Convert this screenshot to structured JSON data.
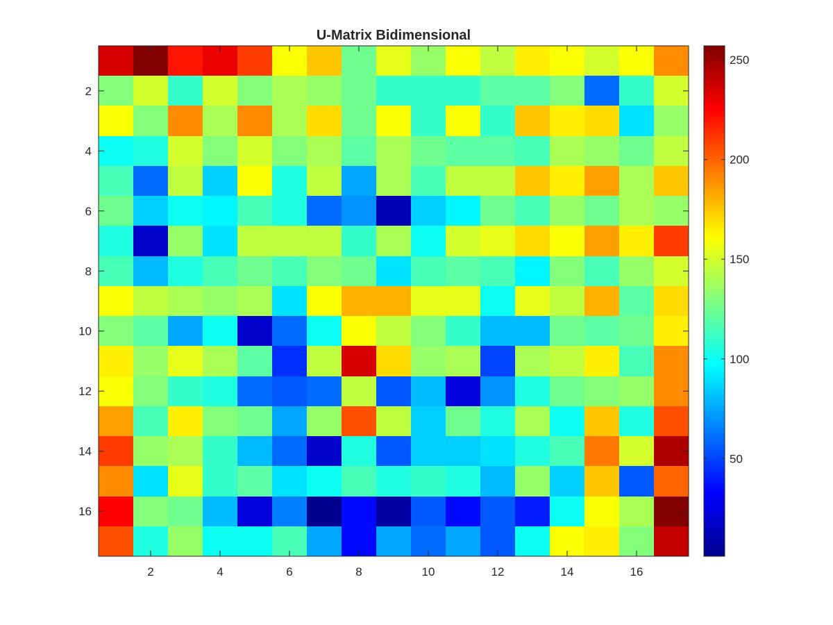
{
  "chart_data": {
    "type": "heatmap",
    "title": "U-Matrix Bidimensional",
    "xlabel": "",
    "ylabel": "",
    "rows": 17,
    "cols": 17,
    "xlim": [
      0.5,
      17.5
    ],
    "ylim": [
      0.5,
      17.5
    ],
    "y_direction": "reverse",
    "x_ticks": [
      2,
      4,
      6,
      8,
      10,
      12,
      14,
      16
    ],
    "y_ticks": [
      2,
      4,
      6,
      8,
      10,
      12,
      14,
      16
    ],
    "colormap": "jet",
    "clim": [
      1,
      257
    ],
    "colorbar_ticks": [
      50,
      100,
      150,
      200,
      250
    ],
    "values": [
      [
        235,
        256,
        220,
        230,
        210,
        160,
        175,
        125,
        155,
        135,
        160,
        145,
        165,
        160,
        150,
        160,
        190
      ],
      [
        130,
        150,
        110,
        150,
        130,
        140,
        135,
        125,
        110,
        110,
        110,
        120,
        120,
        130,
        60,
        110,
        150
      ],
      [
        160,
        130,
        190,
        140,
        190,
        140,
        170,
        125,
        160,
        110,
        160,
        110,
        175,
        165,
        170,
        90,
        135
      ],
      [
        100,
        105,
        150,
        130,
        150,
        130,
        140,
        120,
        140,
        125,
        120,
        120,
        115,
        140,
        135,
        125,
        145
      ],
      [
        115,
        60,
        145,
        85,
        160,
        105,
        145,
        75,
        140,
        115,
        145,
        145,
        175,
        165,
        185,
        140,
        175
      ],
      [
        125,
        85,
        100,
        95,
        115,
        105,
        60,
        70,
        15,
        85,
        95,
        125,
        115,
        135,
        125,
        140,
        135
      ],
      [
        105,
        20,
        135,
        90,
        145,
        145,
        145,
        110,
        140,
        100,
        150,
        155,
        170,
        160,
        185,
        165,
        210
      ],
      [
        115,
        80,
        105,
        115,
        125,
        115,
        130,
        125,
        90,
        115,
        120,
        115,
        95,
        130,
        115,
        135,
        150
      ],
      [
        160,
        145,
        140,
        135,
        140,
        90,
        160,
        180,
        180,
        155,
        155,
        100,
        155,
        145,
        180,
        120,
        170
      ],
      [
        130,
        120,
        75,
        100,
        20,
        60,
        100,
        160,
        145,
        130,
        110,
        80,
        80,
        125,
        120,
        125,
        165
      ],
      [
        165,
        135,
        155,
        140,
        120,
        45,
        145,
        235,
        170,
        135,
        140,
        50,
        140,
        145,
        165,
        115,
        190
      ],
      [
        160,
        130,
        110,
        105,
        60,
        55,
        60,
        145,
        55,
        80,
        25,
        70,
        105,
        125,
        130,
        135,
        190
      ],
      [
        185,
        115,
        165,
        130,
        125,
        75,
        135,
        205,
        145,
        85,
        125,
        105,
        140,
        100,
        175,
        105,
        205
      ],
      [
        210,
        135,
        140,
        110,
        80,
        60,
        20,
        105,
        55,
        85,
        85,
        90,
        105,
        115,
        195,
        150,
        245
      ],
      [
        190,
        90,
        155,
        110,
        120,
        90,
        100,
        115,
        105,
        110,
        105,
        80,
        135,
        85,
        175,
        55,
        200
      ],
      [
        225,
        130,
        125,
        80,
        25,
        65,
        5,
        35,
        10,
        55,
        35,
        55,
        40,
        100,
        160,
        140,
        256
      ],
      [
        205,
        105,
        135,
        100,
        100,
        115,
        75,
        35,
        75,
        60,
        75,
        55,
        100,
        160,
        165,
        130,
        240
      ]
    ]
  }
}
